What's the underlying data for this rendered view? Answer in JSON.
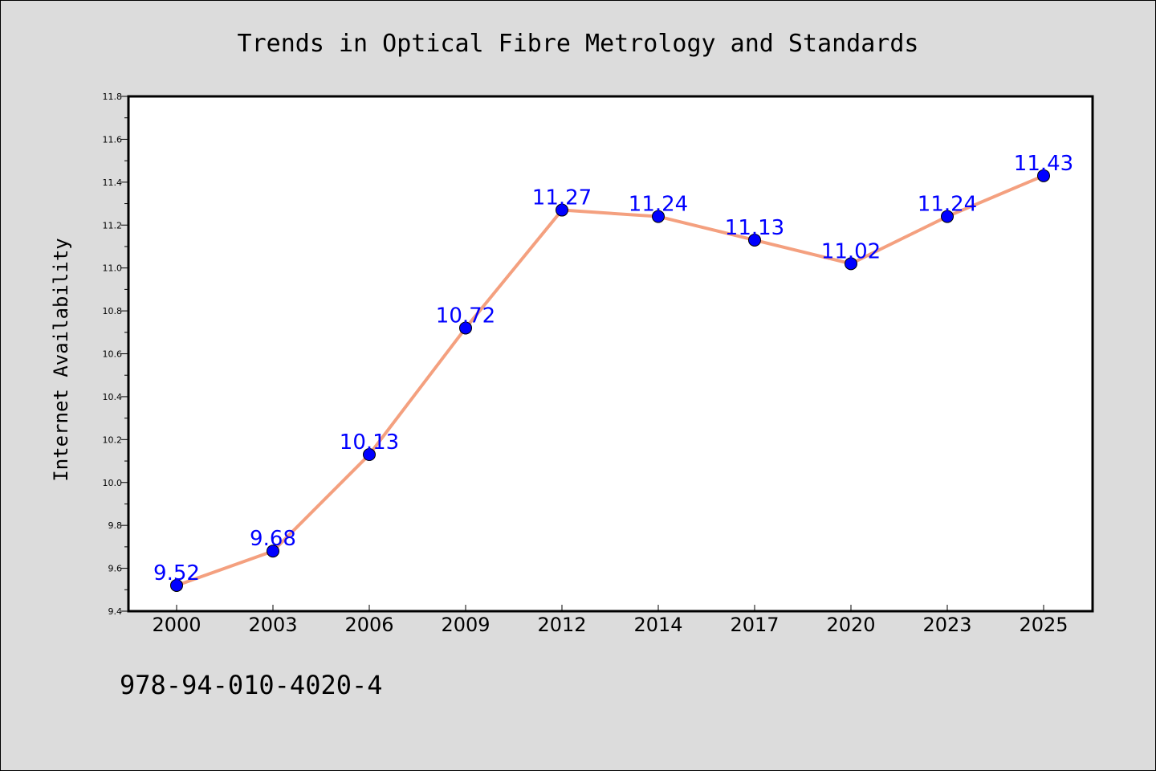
{
  "chart_data": {
    "type": "line",
    "title": "Trends in Optical Fibre Metrology and Standards",
    "xlabel": "",
    "ylabel": "Internet Availability",
    "categories": [
      "2000",
      "2003",
      "2006",
      "2009",
      "2012",
      "2014",
      "2017",
      "2020",
      "2023",
      "2025"
    ],
    "series": [
      {
        "values": [
          9.52,
          9.68,
          10.13,
          10.72,
          11.27,
          11.24,
          11.13,
          11.02,
          11.24,
          11.43
        ]
      }
    ],
    "data_labels": [
      "9.52",
      "9.68",
      "10.13",
      "10.72",
      "11.27",
      "11.24",
      "11.13",
      "11.02",
      "11.24",
      "11.43"
    ],
    "ylim": [
      9.4,
      11.8
    ],
    "yticks": [
      "9.4",
      "9.6",
      "9.8",
      "10.0",
      "10.2",
      "10.4",
      "10.6",
      "10.8",
      "11.0",
      "11.2",
      "11.4",
      "11.6",
      "11.8"
    ],
    "grid": false,
    "legend": "none",
    "colors": {
      "line": "#f4a07f",
      "marker": "#0000ff",
      "data_label": "#0000ff",
      "background": "#dcdcdc",
      "plot_area": "#ffffff"
    }
  },
  "footer_text": "978-94-010-4020-4"
}
